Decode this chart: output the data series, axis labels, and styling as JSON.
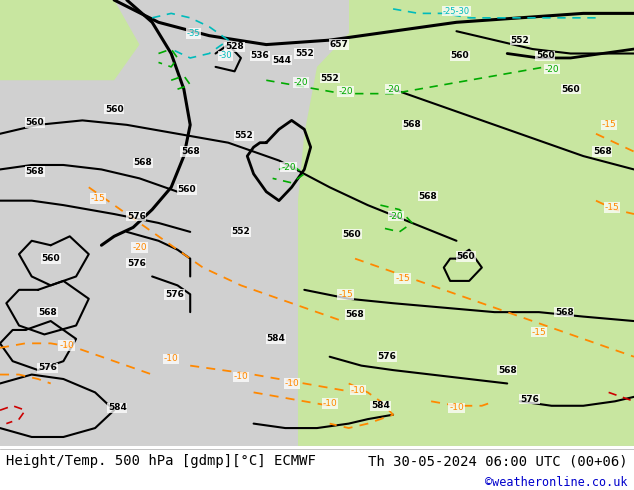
{
  "title_left": "Height/Temp. 500 hPa [gdmp][°C] ECMWF",
  "title_right": "Th 30-05-2024 06:00 UTC (00+06)",
  "credit": "©weatheronline.co.uk",
  "credit_color": "#0000cc",
  "title_color": "#000000",
  "title_fontsize": 10.0,
  "credit_fontsize": 8.5,
  "bg_color": "#ffffff",
  "fig_width": 6.34,
  "fig_height": 4.9,
  "dpi": 100,
  "map_bg_light_green": "#c8e6a0",
  "map_bg_gray": "#d0d0d0",
  "contour_black": "#000000",
  "contour_orange": "#ff8800",
  "contour_green": "#00aa00",
  "contour_cyan": "#00bbbb",
  "contour_red": "#cc0000"
}
